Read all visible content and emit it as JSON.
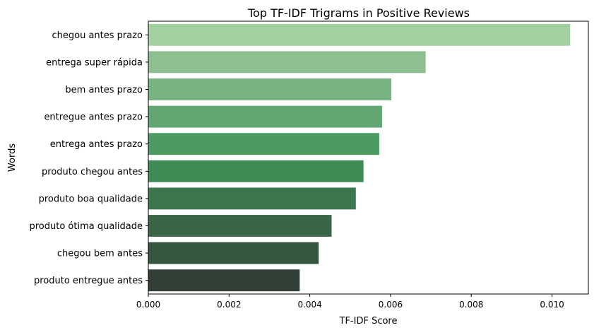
{
  "chart_data": {
    "type": "bar",
    "orientation": "horizontal",
    "title": "Top TF-IDF Trigrams in Positive Reviews",
    "xlabel": "TF-IDF Score",
    "ylabel": "Words",
    "xlim": [
      0,
      0.0109
    ],
    "x_ticks": [
      0,
      0.002,
      0.004,
      0.006,
      0.008,
      0.01
    ],
    "x_tick_labels": [
      "0.000",
      "0.002",
      "0.004",
      "0.006",
      "0.008",
      "0.010"
    ],
    "grid": false,
    "categories": [
      "chegou antes prazo",
      "entrega super rápida",
      "bem antes prazo",
      "entregue antes prazo",
      "entrega antes prazo",
      "produto chegou antes",
      "produto boa qualidade",
      "produto ótima qualidade",
      "chegou bem antes",
      "produto entregue antes"
    ],
    "values": [
      0.01045,
      0.00687,
      0.00602,
      0.00579,
      0.00572,
      0.00533,
      0.00514,
      0.00454,
      0.00422,
      0.00375
    ],
    "colors": [
      "#a3d0a0",
      "#8ebf91",
      "#78b482",
      "#62a773",
      "#4c9b64",
      "#3f8b55",
      "#3c754e",
      "#3a6547",
      "#365640",
      "#323f36"
    ]
  }
}
